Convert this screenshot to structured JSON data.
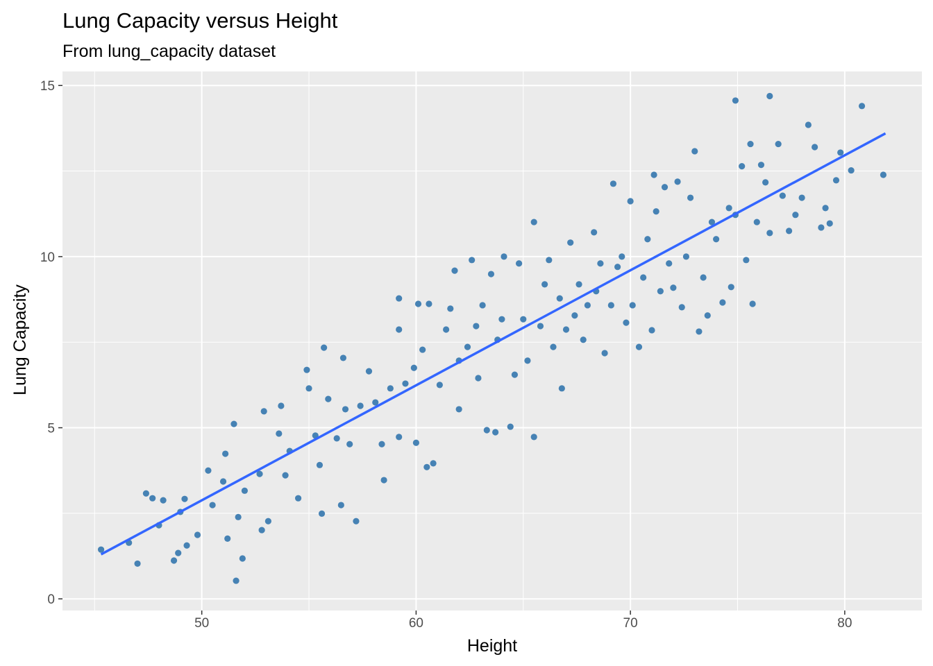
{
  "chart_data": {
    "type": "scatter",
    "title": "Lung Capacity versus Height",
    "subtitle": "From lung_capacity dataset",
    "xlabel": "Height",
    "ylabel": "Lung Capacity",
    "xlim": [
      43.5,
      83.6
    ],
    "ylim": [
      -0.34,
      15.41
    ],
    "xticks": [
      50,
      60,
      70,
      80
    ],
    "yticks": [
      0,
      5,
      10,
      15
    ],
    "xtick_labels": [
      "50",
      "60",
      "70",
      "80"
    ],
    "ytick_labels": [
      "0",
      "5",
      "10",
      "15"
    ],
    "grid": true,
    "point_color": "#4682B4",
    "line_color": "#3366FF",
    "panel_color": "#EBEBEB",
    "fit_line": {
      "x": [
        45.3,
        81.9
      ],
      "y": [
        1.3,
        13.6
      ]
    },
    "points": [
      [
        45.3,
        1.44
      ],
      [
        46.6,
        1.64
      ],
      [
        47.0,
        1.03
      ],
      [
        47.4,
        3.08
      ],
      [
        47.7,
        2.94
      ],
      [
        48.0,
        2.15
      ],
      [
        48.2,
        2.88
      ],
      [
        48.7,
        1.12
      ],
      [
        48.9,
        1.34
      ],
      [
        49.0,
        2.54
      ],
      [
        49.2,
        2.92
      ],
      [
        49.3,
        1.56
      ],
      [
        49.8,
        1.87
      ],
      [
        50.3,
        3.75
      ],
      [
        50.5,
        2.74
      ],
      [
        51.0,
        3.43
      ],
      [
        51.1,
        4.24
      ],
      [
        51.2,
        1.76
      ],
      [
        51.5,
        5.11
      ],
      [
        51.6,
        0.53
      ],
      [
        51.7,
        2.39
      ],
      [
        51.9,
        1.18
      ],
      [
        52.0,
        3.16
      ],
      [
        52.7,
        3.65
      ],
      [
        52.8,
        2.01
      ],
      [
        52.9,
        5.48
      ],
      [
        53.1,
        2.27
      ],
      [
        53.6,
        4.83
      ],
      [
        53.7,
        5.64
      ],
      [
        53.9,
        3.61
      ],
      [
        54.1,
        4.32
      ],
      [
        54.5,
        2.94
      ],
      [
        54.9,
        6.69
      ],
      [
        55.0,
        6.15
      ],
      [
        55.3,
        4.77
      ],
      [
        55.5,
        3.91
      ],
      [
        55.6,
        2.49
      ],
      [
        55.7,
        7.34
      ],
      [
        55.9,
        5.84
      ],
      [
        56.3,
        4.69
      ],
      [
        56.5,
        2.74
      ],
      [
        56.6,
        7.04
      ],
      [
        56.7,
        5.54
      ],
      [
        56.9,
        4.52
      ],
      [
        57.2,
        2.27
      ],
      [
        57.4,
        5.64
      ],
      [
        57.8,
        6.65
      ],
      [
        58.1,
        5.74
      ],
      [
        58.4,
        4.52
      ],
      [
        58.5,
        3.47
      ],
      [
        58.8,
        6.15
      ],
      [
        59.2,
        8.78
      ],
      [
        59.2,
        7.87
      ],
      [
        59.2,
        4.73
      ],
      [
        59.5,
        6.29
      ],
      [
        59.9,
        6.75
      ],
      [
        60.0,
        4.56
      ],
      [
        60.1,
        8.62
      ],
      [
        60.3,
        7.28
      ],
      [
        60.5,
        3.85
      ],
      [
        60.6,
        8.62
      ],
      [
        60.8,
        3.96
      ],
      [
        61.1,
        6.25
      ],
      [
        61.4,
        7.87
      ],
      [
        61.6,
        8.48
      ],
      [
        61.8,
        9.59
      ],
      [
        62.0,
        5.54
      ],
      [
        62.0,
        6.96
      ],
      [
        62.4,
        7.36
      ],
      [
        62.6,
        9.9
      ],
      [
        62.8,
        7.97
      ],
      [
        62.9,
        6.45
      ],
      [
        63.1,
        8.58
      ],
      [
        63.3,
        4.93
      ],
      [
        63.5,
        9.49
      ],
      [
        63.7,
        4.87
      ],
      [
        63.8,
        7.57
      ],
      [
        64.0,
        8.17
      ],
      [
        64.1,
        10.0
      ],
      [
        64.4,
        5.03
      ],
      [
        64.6,
        6.55
      ],
      [
        64.8,
        9.8
      ],
      [
        65.0,
        8.17
      ],
      [
        65.2,
        6.96
      ],
      [
        65.5,
        4.73
      ],
      [
        65.5,
        11.01
      ],
      [
        65.8,
        7.97
      ],
      [
        66.0,
        9.19
      ],
      [
        66.2,
        9.9
      ],
      [
        66.4,
        7.36
      ],
      [
        66.7,
        8.78
      ],
      [
        66.8,
        6.15
      ],
      [
        67.0,
        7.87
      ],
      [
        67.2,
        10.41
      ],
      [
        67.4,
        8.28
      ],
      [
        67.6,
        9.19
      ],
      [
        67.8,
        7.57
      ],
      [
        68.0,
        8.58
      ],
      [
        68.3,
        10.71
      ],
      [
        68.4,
        8.99
      ],
      [
        68.6,
        9.8
      ],
      [
        68.8,
        7.18
      ],
      [
        69.1,
        8.58
      ],
      [
        69.2,
        12.13
      ],
      [
        69.4,
        9.7
      ],
      [
        69.6,
        10.0
      ],
      [
        69.8,
        8.07
      ],
      [
        70.0,
        11.62
      ],
      [
        70.1,
        8.58
      ],
      [
        70.4,
        7.36
      ],
      [
        70.6,
        9.39
      ],
      [
        70.8,
        10.51
      ],
      [
        71.0,
        7.85
      ],
      [
        71.1,
        12.39
      ],
      [
        71.2,
        11.32
      ],
      [
        71.4,
        8.99
      ],
      [
        71.6,
        12.03
      ],
      [
        71.8,
        9.8
      ],
      [
        72.0,
        9.09
      ],
      [
        72.2,
        12.19
      ],
      [
        72.4,
        8.52
      ],
      [
        72.6,
        10.0
      ],
      [
        72.8,
        11.72
      ],
      [
        73.0,
        13.08
      ],
      [
        73.2,
        7.81
      ],
      [
        73.4,
        9.39
      ],
      [
        73.6,
        8.28
      ],
      [
        73.8,
        11.01
      ],
      [
        74.0,
        10.51
      ],
      [
        74.3,
        8.66
      ],
      [
        74.6,
        11.42
      ],
      [
        74.7,
        9.11
      ],
      [
        74.9,
        14.56
      ],
      [
        74.9,
        11.22
      ],
      [
        75.2,
        12.64
      ],
      [
        75.4,
        9.9
      ],
      [
        75.6,
        13.29
      ],
      [
        75.7,
        8.62
      ],
      [
        75.9,
        11.01
      ],
      [
        76.1,
        12.68
      ],
      [
        76.3,
        12.17
      ],
      [
        76.5,
        14.69
      ],
      [
        76.5,
        10.69
      ],
      [
        76.9,
        13.29
      ],
      [
        77.1,
        11.78
      ],
      [
        77.4,
        10.75
      ],
      [
        77.7,
        11.22
      ],
      [
        78.0,
        11.72
      ],
      [
        78.3,
        13.85
      ],
      [
        78.6,
        13.2
      ],
      [
        78.9,
        10.85
      ],
      [
        79.1,
        11.42
      ],
      [
        79.3,
        10.97
      ],
      [
        79.6,
        12.23
      ],
      [
        79.8,
        13.04
      ],
      [
        80.3,
        12.52
      ],
      [
        80.8,
        14.4
      ],
      [
        81.8,
        12.39
      ]
    ]
  }
}
